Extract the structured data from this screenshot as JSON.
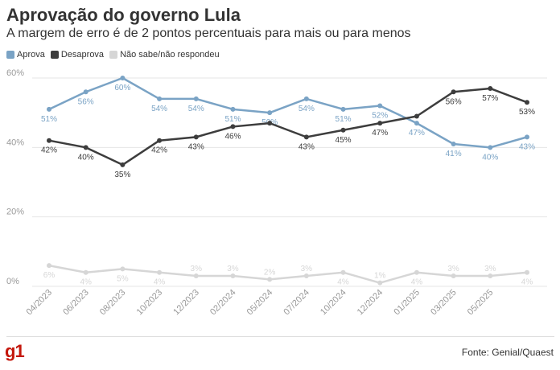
{
  "header": {
    "title": "Aprovação do governo Lula",
    "subtitle": "A margem de erro é de 2 pontos percentuais para mais ou para menos"
  },
  "footer": {
    "logo_text": "g1",
    "source": "Fonte: Genial/Quaest"
  },
  "colors": {
    "aprova": "#7aa3c5",
    "desaprova": "#3d3d3d",
    "nao_sabe": "#d6d6d6",
    "grid": "#e6e6e6",
    "axis_text": "#999999",
    "brand": "#c4170c"
  },
  "chart_data": {
    "type": "line",
    "title": "Aprovação do governo Lula",
    "subtitle": "A margem de erro é de 2 pontos percentuais para mais ou para menos",
    "xlabel": "",
    "ylabel": "",
    "ylim": [
      0,
      60
    ],
    "yticks": [
      0,
      20,
      40,
      60
    ],
    "ytick_labels": [
      "0%",
      "20%",
      "40%",
      "60%"
    ],
    "grid": true,
    "legend_position": "top-left",
    "x_tick_labels": [
      "04/2023",
      "06/2023",
      "08/2023",
      "10/2023",
      "12/2023",
      "02/2024",
      "05/2024",
      "07/2024",
      "10/2024",
      "12/2024",
      "01/2025",
      "03/2025",
      "05/2025"
    ],
    "point_count": 14,
    "series": [
      {
        "name": "Aprova",
        "color": "#7aa3c5",
        "values": [
          51,
          56,
          60,
          54,
          54,
          51,
          50,
          54,
          51,
          52,
          47,
          41,
          40,
          43
        ],
        "labels": [
          "51%",
          "56%",
          "60%",
          "54%",
          "54%",
          "51%",
          "50%",
          "54%",
          "51%",
          "52%",
          "47%",
          "41%",
          "40%",
          "43%"
        ],
        "label_pos": [
          "below",
          "below",
          "below",
          "below",
          "below",
          "below",
          "below",
          "below",
          "below",
          "below",
          "below",
          "below",
          "below",
          "below"
        ]
      },
      {
        "name": "Desaprova",
        "color": "#3d3d3d",
        "values": [
          42,
          40,
          35,
          42,
          43,
          46,
          47,
          43,
          45,
          47,
          49,
          56,
          57,
          53
        ],
        "labels": [
          "42%",
          "40%",
          "35%",
          "42%",
          "43%",
          "46%",
          "",
          "43%",
          "45%",
          "47%",
          "",
          "56%",
          "57%",
          "53%"
        ],
        "label_pos": [
          "below",
          "below",
          "below",
          "below",
          "below",
          "below",
          "below",
          "below",
          "below",
          "below",
          "below",
          "below",
          "below",
          "below"
        ]
      },
      {
        "name": "Não sabe/não respondeu",
        "color": "#d6d6d6",
        "values": [
          6,
          4,
          5,
          4,
          3,
          3,
          2,
          3,
          4,
          1,
          4,
          3,
          3,
          4
        ],
        "labels": [
          "6%",
          "4%",
          "5%",
          "4%",
          "3%",
          "3%",
          "2%",
          "3%",
          "4%",
          "1%",
          "4%",
          "3%",
          "3%",
          "4%"
        ],
        "label_pos": [
          "below",
          "below",
          "below",
          "below",
          "above",
          "above",
          "above",
          "above",
          "below",
          "above",
          "below",
          "above",
          "above",
          "below"
        ]
      }
    ]
  }
}
